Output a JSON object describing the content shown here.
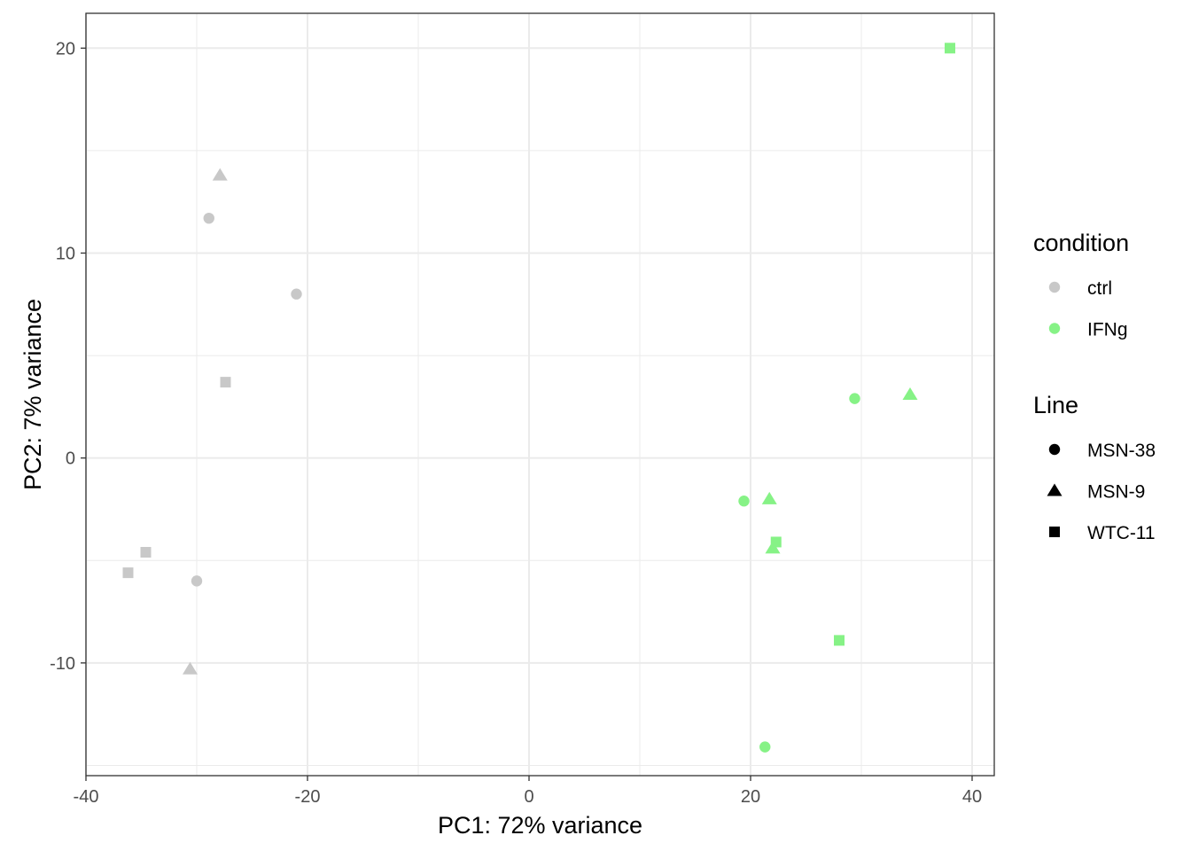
{
  "chart_data": {
    "type": "scatter",
    "xlabel": "PC1: 72% variance",
    "ylabel": "PC2: 7% variance",
    "xlim": [
      -40,
      42
    ],
    "ylim": [
      -15.5,
      21.7
    ],
    "x_ticks": [
      -40,
      -20,
      0,
      20,
      40
    ],
    "y_ticks": [
      -10,
      0,
      10,
      20
    ],
    "x_tick_labels": [
      "-40",
      "-20",
      "0",
      "20",
      "40"
    ],
    "y_tick_labels": [
      "-10",
      "0",
      "10",
      "20"
    ],
    "grid": true,
    "legend_position": "right",
    "legends": [
      {
        "title": "condition",
        "kind": "color",
        "items": [
          {
            "label": "ctrl",
            "color": "#c8c8c8"
          },
          {
            "label": "IFNg",
            "color": "#86f286"
          }
        ]
      },
      {
        "title": "Line",
        "kind": "shape",
        "items": [
          {
            "label": "MSN-38",
            "shape": "circle"
          },
          {
            "label": "MSN-9",
            "shape": "triangle"
          },
          {
            "label": "WTC-11",
            "shape": "square"
          }
        ]
      }
    ],
    "points": [
      {
        "x": -28.9,
        "y": 11.7,
        "condition": "ctrl",
        "line": "MSN-38"
      },
      {
        "x": -21.0,
        "y": 8.0,
        "condition": "ctrl",
        "line": "MSN-38"
      },
      {
        "x": -30.0,
        "y": -6.0,
        "condition": "ctrl",
        "line": "MSN-38"
      },
      {
        "x": -27.9,
        "y": 13.8,
        "condition": "ctrl",
        "line": "MSN-9"
      },
      {
        "x": -30.6,
        "y": -10.3,
        "condition": "ctrl",
        "line": "MSN-9"
      },
      {
        "x": -27.4,
        "y": 3.7,
        "condition": "ctrl",
        "line": "WTC-11"
      },
      {
        "x": -34.6,
        "y": -4.6,
        "condition": "ctrl",
        "line": "WTC-11"
      },
      {
        "x": -36.2,
        "y": -5.6,
        "condition": "ctrl",
        "line": "WTC-11"
      },
      {
        "x": 29.4,
        "y": 2.9,
        "condition": "IFNg",
        "line": "MSN-38"
      },
      {
        "x": 19.4,
        "y": -2.1,
        "condition": "IFNg",
        "line": "MSN-38"
      },
      {
        "x": 21.3,
        "y": -14.1,
        "condition": "IFNg",
        "line": "MSN-38"
      },
      {
        "x": 34.4,
        "y": 3.1,
        "condition": "IFNg",
        "line": "MSN-9"
      },
      {
        "x": 21.7,
        "y": -2.0,
        "condition": "IFNg",
        "line": "MSN-9"
      },
      {
        "x": 22.0,
        "y": -4.4,
        "condition": "IFNg",
        "line": "MSN-9"
      },
      {
        "x": 38.0,
        "y": 20.0,
        "condition": "IFNg",
        "line": "WTC-11"
      },
      {
        "x": 22.3,
        "y": -4.1,
        "condition": "IFNg",
        "line": "WTC-11"
      },
      {
        "x": 28.0,
        "y": -8.9,
        "condition": "IFNg",
        "line": "WTC-11"
      }
    ]
  }
}
